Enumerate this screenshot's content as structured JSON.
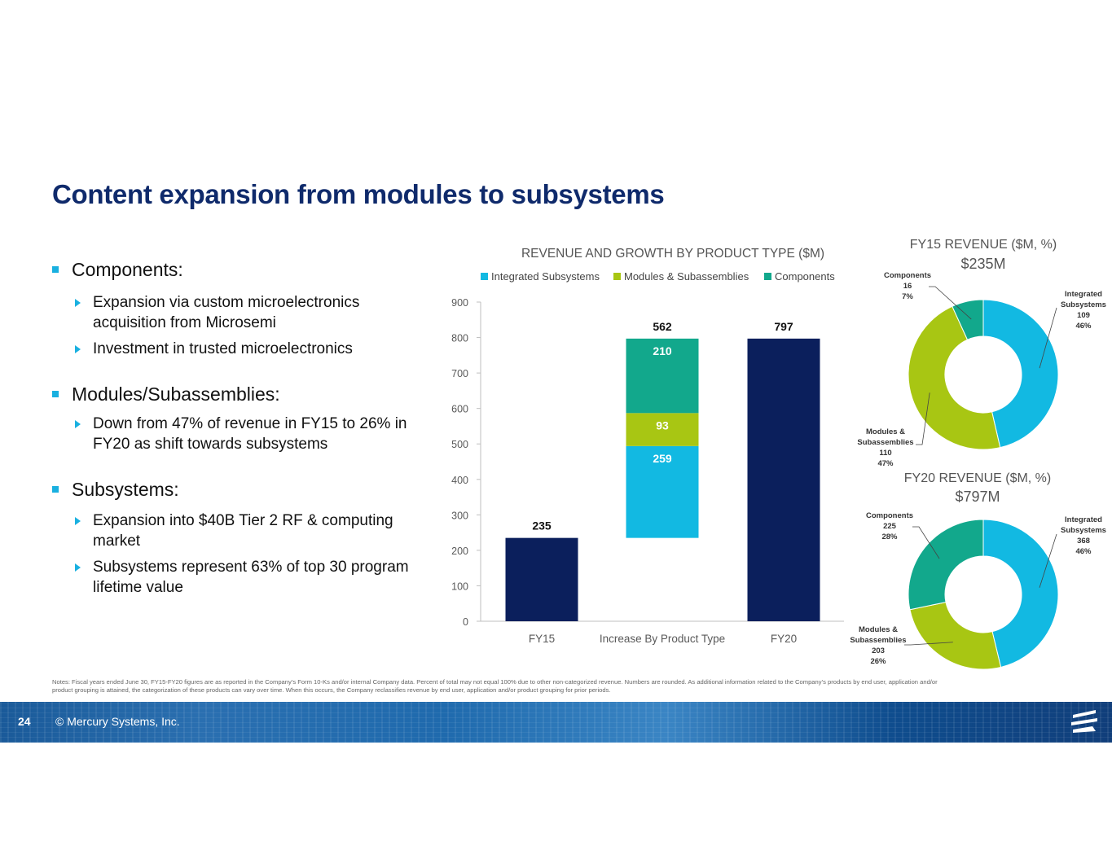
{
  "title": "Content expansion from modules to subsystems",
  "bullets": [
    {
      "heading": "Components:",
      "items": [
        "Expansion via custom microelectronics acquisition from Microsemi",
        "Investment in trusted microelectronics"
      ]
    },
    {
      "heading": "Modules/Subassemblies:",
      "items": [
        "Down from 47% of revenue in FY15 to 26% in FY20 as shift towards subsystems"
      ]
    },
    {
      "heading": "Subsystems:",
      "items": [
        "Expansion into $40B Tier 2 RF & computing market",
        "Subsystems represent 63% of top 30 program lifetime value"
      ]
    }
  ],
  "colors": {
    "integrated": "#12b9e2",
    "modules": "#a8c613",
    "components": "#12a88c",
    "navy": "#0b1f5c",
    "title": "#0f2a6b"
  },
  "chart_data": [
    {
      "type": "bar",
      "title": "REVENUE AND GROWTH BY PRODUCT TYPE ($M)",
      "legend": [
        "Integrated Subsystems",
        "Modules & Subassemblies",
        "Components"
      ],
      "legend_placement": "top",
      "categories": [
        "FY15",
        "Increase By Product Type",
        "FY20"
      ],
      "yticks": [
        0,
        100,
        200,
        300,
        400,
        500,
        600,
        700,
        800,
        900
      ],
      "ylim": [
        0,
        900
      ],
      "bars": [
        {
          "category": "FY15",
          "value": 235,
          "label": "235"
        },
        {
          "category": "Increase By Product Type",
          "base": 235,
          "total": 562,
          "total_label": "562",
          "segments": [
            {
              "series": "Integrated Subsystems",
              "value": 259,
              "label": "259"
            },
            {
              "series": "Modules & Subassemblies",
              "value": 93,
              "label": "93"
            },
            {
              "series": "Components",
              "value": 210,
              "label": "210"
            }
          ]
        },
        {
          "category": "FY20",
          "value": 797,
          "label": "797"
        }
      ]
    },
    {
      "type": "pie",
      "title": "FY15 REVENUE ($M, %)",
      "subtitle": "$235M",
      "slices": [
        {
          "name": "Integrated Subsystems",
          "value": 109,
          "pct": "46%"
        },
        {
          "name": "Modules & Subassemblies",
          "value": 110,
          "pct": "47%"
        },
        {
          "name": "Components",
          "value": 16,
          "pct": "7%"
        }
      ]
    },
    {
      "type": "pie",
      "title": "FY20 REVENUE ($M, %)",
      "subtitle": "$797M",
      "slices": [
        {
          "name": "Integrated Subsystems",
          "value": 368,
          "pct": "46%"
        },
        {
          "name": "Modules & Subassemblies",
          "value": 203,
          "pct": "26%"
        },
        {
          "name": "Components",
          "value": 225,
          "pct": "28%"
        }
      ]
    }
  ],
  "notes": "Notes: Fiscal years ended June 30, FY15-FY20 figures are as reported in the Company’s Form 10-Ks and/or internal Company data. Percent of total may not equal 100% due to other non-categorized revenue. Numbers are rounded. As additional information related to the Company’s products by end user, application and/or product grouping is attained, the categorization of these products can vary over time. When this occurs, the Company reclassifies revenue by end user, application and/or product grouping for prior periods.",
  "footer": {
    "page": "24",
    "copyright": "© Mercury Systems, Inc."
  }
}
